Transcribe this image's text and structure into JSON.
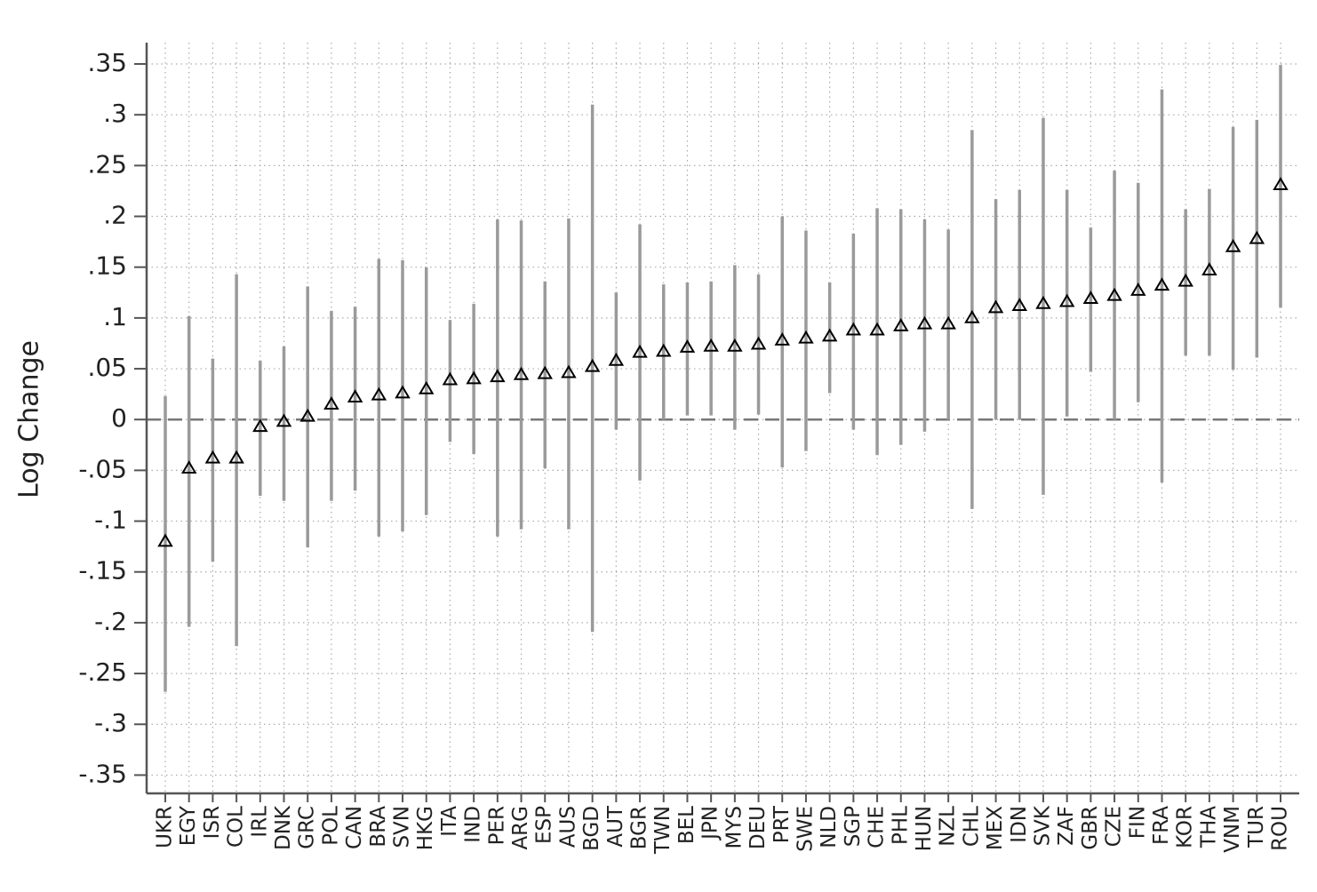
{
  "chart_data": {
    "type": "errorbar",
    "y_label": "Log Change",
    "categories": [
      "UKR",
      "EGY",
      "ISR",
      "COL",
      "IRL",
      "DNK",
      "GRC",
      "POL",
      "CAN",
      "BRA",
      "SVN",
      "HKG",
      "ITA",
      "IND",
      "PER",
      "ARG",
      "ESP",
      "AUS",
      "BGD",
      "AUT",
      "BGR",
      "TWN",
      "BEL",
      "JPN",
      "MYS",
      "DEU",
      "PRT",
      "SWE",
      "NLD",
      "SGP",
      "CHE",
      "PHL",
      "HUN",
      "NZL",
      "CHL",
      "MEX",
      "IDN",
      "SVK",
      "ZAF",
      "GBR",
      "CZE",
      "FIN",
      "FRA",
      "KOR",
      "THA",
      "VNM",
      "TUR",
      "ROU"
    ],
    "values": [
      -0.12,
      -0.048,
      -0.038,
      -0.038,
      -0.007,
      -0.002,
      0.003,
      0.015,
      0.022,
      0.024,
      0.026,
      0.03,
      0.039,
      0.04,
      0.042,
      0.044,
      0.045,
      0.046,
      0.052,
      0.058,
      0.066,
      0.067,
      0.071,
      0.072,
      0.072,
      0.074,
      0.078,
      0.08,
      0.082,
      0.088,
      0.088,
      0.092,
      0.094,
      0.094,
      0.1,
      0.11,
      0.112,
      0.114,
      0.116,
      0.119,
      0.122,
      0.127,
      0.132,
      0.136,
      0.147,
      0.17,
      0.178,
      0.231
    ],
    "lower": [
      -0.268,
      -0.204,
      -0.14,
      -0.223,
      -0.075,
      -0.08,
      -0.126,
      -0.08,
      -0.07,
      -0.115,
      -0.11,
      -0.094,
      -0.022,
      -0.034,
      -0.115,
      -0.108,
      -0.048,
      -0.108,
      -0.209,
      -0.01,
      -0.06,
      0,
      0.004,
      0.004,
      -0.01,
      0.005,
      -0.047,
      -0.031,
      0.026,
      -0.01,
      -0.035,
      -0.025,
      -0.012,
      0,
      -0.088,
      0,
      0,
      -0.074,
      0.003,
      0.047,
      0,
      0.017,
      -0.062,
      0.063,
      0.063,
      0.049,
      0.061,
      0.11
    ],
    "upper": [
      0.023,
      0.102,
      0.06,
      0.143,
      0.058,
      0.072,
      0.131,
      0.107,
      0.111,
      0.158,
      0.157,
      0.15,
      0.098,
      0.114,
      0.197,
      0.196,
      0.136,
      0.198,
      0.31,
      0.125,
      0.192,
      0.133,
      0.135,
      0.136,
      0.152,
      0.143,
      0.2,
      0.186,
      0.135,
      0.183,
      0.208,
      0.207,
      0.197,
      0.187,
      0.285,
      0.217,
      0.226,
      0.297,
      0.226,
      0.189,
      0.245,
      0.233,
      0.325,
      0.207,
      0.227,
      0.288,
      0.295,
      0.349
    ],
    "bar_color": "#9a9a9a",
    "marker_color": "#000000",
    "ylim": [
      -0.368,
      0.371
    ],
    "yticks": [
      {
        "value": 0.35,
        "label": ".35"
      },
      {
        "value": 0.3,
        "label": ".3"
      },
      {
        "value": 0.25,
        "label": ".25"
      },
      {
        "value": 0.2,
        "label": ".2"
      },
      {
        "value": 0.15,
        "label": ".15"
      },
      {
        "value": 0.1,
        "label": ".1"
      },
      {
        "value": 0.05,
        "label": ".05"
      },
      0,
      {
        "value": -0.05,
        "label": "-.05"
      },
      {
        "value": -0.1,
        "label": "-.1"
      },
      {
        "value": -0.15,
        "label": "-.15"
      },
      {
        "value": -0.2,
        "label": "-.2"
      },
      {
        "value": -0.25,
        "label": "-.25"
      },
      {
        "value": -0.3,
        "label": "-.3"
      },
      {
        "value": -0.35,
        "label": "-.35"
      }
    ],
    "reference_line": 0,
    "grid": true
  }
}
